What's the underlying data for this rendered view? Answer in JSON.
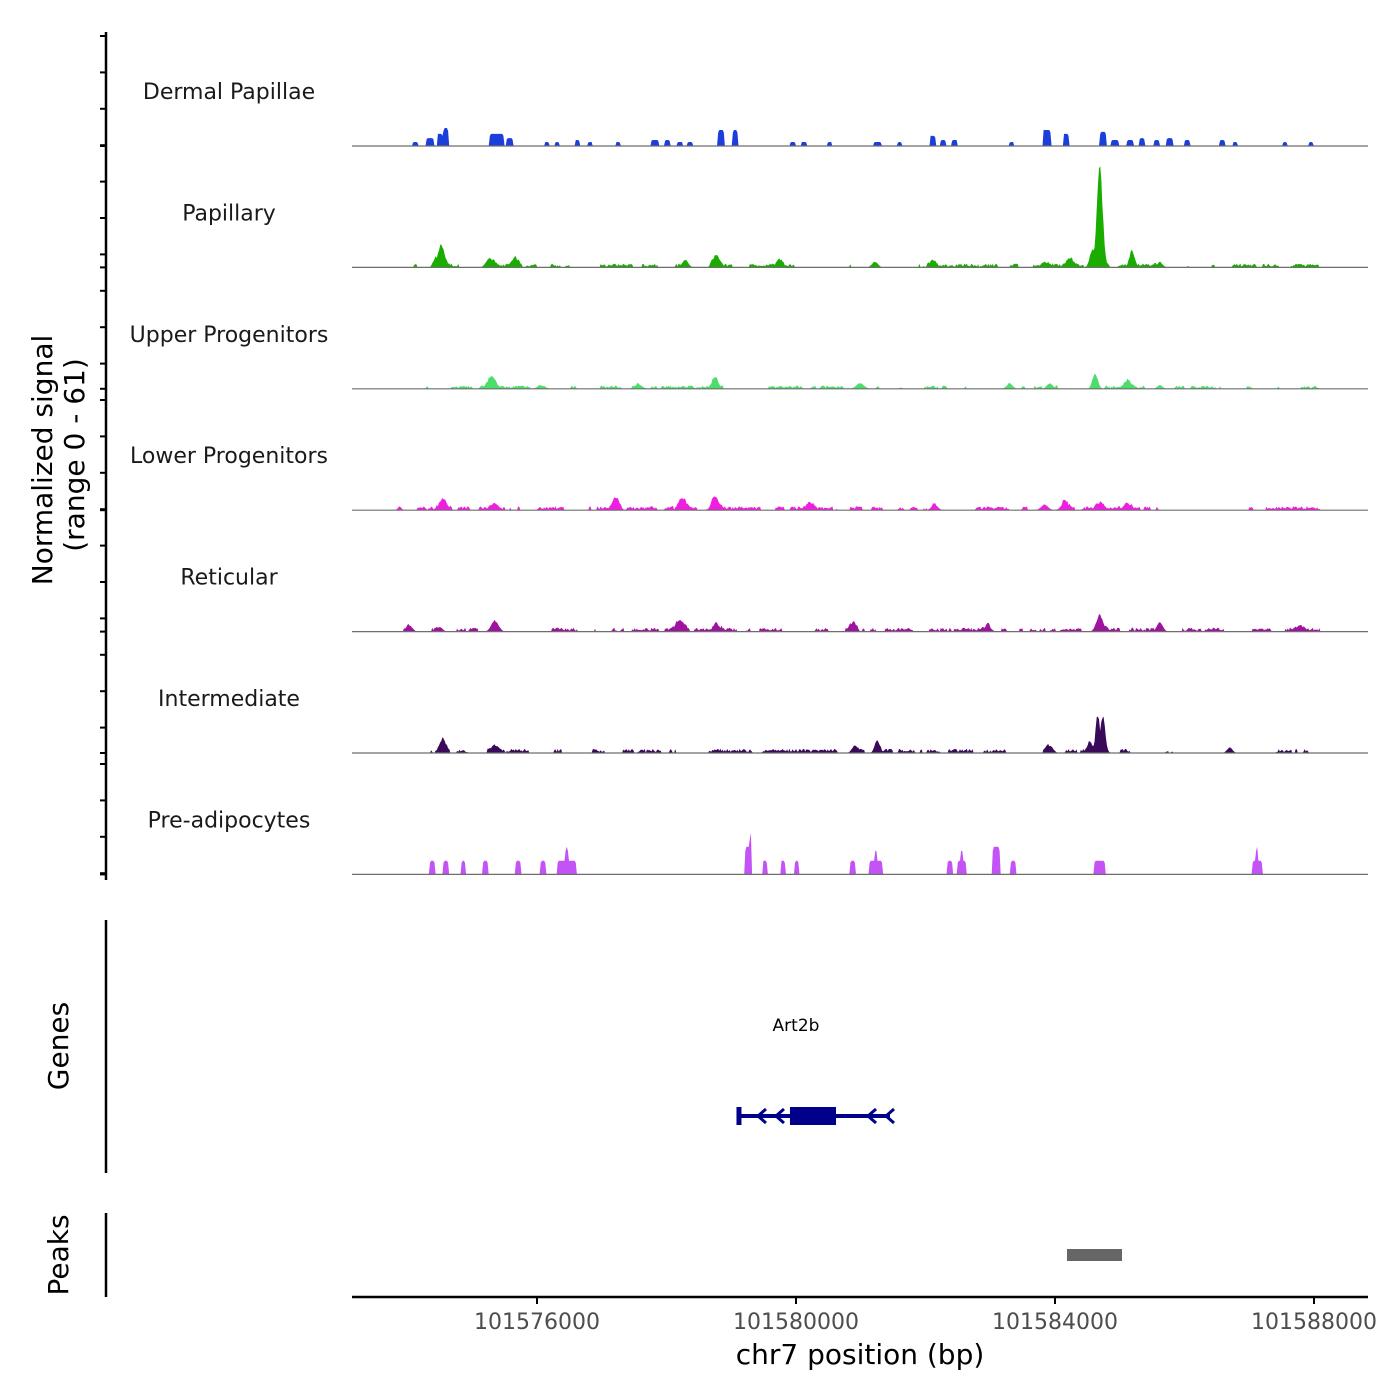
{
  "chart_data": {
    "type": "area",
    "title": "",
    "xlabel": "chr7 position (bp)",
    "ylabel": "Normalized signal",
    "ylabel_sub": "(range 0 - 61)",
    "ylim": [
      0,
      61
    ],
    "xlim": [
      101573143,
      101588834
    ],
    "xticks": [
      101576000,
      101580000,
      101584000,
      101588000
    ],
    "xtick_labels": [
      "101576000",
      "101580000",
      "101584000",
      "101588000"
    ],
    "grid": false,
    "tracks": [
      {
        "name": "Dermal Papillae",
        "color": "#1c3fdb",
        "shape": "block",
        "noise": 0,
        "bumps": [
          [
            101574120,
            93,
            2.2
          ],
          [
            101574350,
            124,
            4.4
          ],
          [
            101574500,
            93,
            6.7
          ],
          [
            101574590,
            93,
            10
          ],
          [
            101575380,
            216,
            6.7
          ],
          [
            101575580,
            93,
            4.4
          ],
          [
            101576150,
            77,
            2.2
          ],
          [
            101576310,
            77,
            2.2
          ],
          [
            101576620,
            77,
            3.3
          ],
          [
            101576820,
            77,
            2.2
          ],
          [
            101577250,
            77,
            2.2
          ],
          [
            101577820,
            108,
            3.3
          ],
          [
            101578010,
            93,
            3.3
          ],
          [
            101578210,
            93,
            2.2
          ],
          [
            101578360,
            93,
            2.2
          ],
          [
            101578840,
            93,
            8.9
          ],
          [
            101579060,
            93,
            8.9
          ],
          [
            101579950,
            93,
            2.2
          ],
          [
            101580120,
            93,
            2.2
          ],
          [
            101580520,
            77,
            2.2
          ],
          [
            101581260,
            124,
            2.2
          ],
          [
            101581600,
            77,
            2.2
          ],
          [
            101582110,
            93,
            5.6
          ],
          [
            101582270,
            93,
            3.3
          ],
          [
            101582450,
            93,
            3.3
          ],
          [
            101583330,
            77,
            2.2
          ],
          [
            101583870,
            124,
            8.9
          ],
          [
            101584170,
            93,
            6.7
          ],
          [
            101584740,
            93,
            7.8
          ],
          [
            101584920,
            124,
            3.3
          ],
          [
            101585160,
            93,
            3.3
          ],
          [
            101585340,
            93,
            4.4
          ],
          [
            101585570,
            93,
            3.3
          ],
          [
            101585770,
            93,
            4.4
          ],
          [
            101586040,
            93,
            3.3
          ],
          [
            101586580,
            93,
            3.3
          ],
          [
            101586780,
            77,
            2.2
          ],
          [
            101587550,
            77,
            2.2
          ],
          [
            101587950,
            77,
            2.2
          ]
        ]
      },
      {
        "name": "Papillary",
        "color": "#1aad00",
        "shape": "peak",
        "noise": 1.6,
        "bumps": [
          [
            101584690,
            95,
            61
          ],
          [
            101584580,
            90,
            11
          ],
          [
            101585190,
            80,
            9
          ],
          [
            101574520,
            110,
            12
          ],
          [
            101574430,
            80,
            5.5
          ],
          [
            101575270,
            120,
            5.6
          ],
          [
            101575660,
            120,
            4.4
          ],
          [
            101578290,
            100,
            4.4
          ],
          [
            101578760,
            110,
            5.6
          ],
          [
            101579750,
            90,
            3.3
          ],
          [
            101581220,
            100,
            3.3
          ],
          [
            101582110,
            100,
            3.3
          ],
          [
            101583840,
            120,
            3.3
          ],
          [
            101584230,
            110,
            4.4
          ],
          [
            101585620,
            90,
            3.3
          ]
        ]
      },
      {
        "name": "Upper Progenitors",
        "color": "#4ddd6a",
        "shape": "peak",
        "noise": 1.4,
        "bumps": [
          [
            101575300,
            120,
            6.7
          ],
          [
            101578750,
            100,
            5.6
          ],
          [
            101584620,
            90,
            8.9
          ],
          [
            101585120,
            100,
            4.4
          ],
          [
            101580990,
            130,
            3.3
          ],
          [
            101583300,
            100,
            3.3
          ],
          [
            101583920,
            100,
            3.3
          ],
          [
            101577590,
            100,
            2.2
          ],
          [
            101576050,
            100,
            2.2
          ],
          [
            101585620,
            90,
            2.2
          ]
        ]
      },
      {
        "name": "Lower Progenitors",
        "color": "#f01ee0",
        "shape": "peak",
        "noise": 1.7,
        "bumps": [
          [
            101577220,
            110,
            7.8
          ],
          [
            101578750,
            120,
            6.7
          ],
          [
            101578250,
            120,
            5.6
          ],
          [
            101574550,
            110,
            5.6
          ],
          [
            101584150,
            120,
            4.4
          ],
          [
            101585110,
            110,
            4.4
          ],
          [
            101583840,
            120,
            3.3
          ],
          [
            101584690,
            120,
            3.3
          ],
          [
            101582140,
            110,
            3.3
          ],
          [
            101580220,
            110,
            3.3
          ],
          [
            101575350,
            100,
            3.3
          ],
          [
            101573880,
            60,
            2.2
          ]
        ]
      },
      {
        "name": "Reticular",
        "color": "#a0139f",
        "shape": "peak",
        "noise": 1.7,
        "bumps": [
          [
            101584690,
            110,
            10
          ],
          [
            101578210,
            150,
            5.6
          ],
          [
            101575350,
            120,
            6.7
          ],
          [
            101578780,
            100,
            4.4
          ],
          [
            101580880,
            110,
            4.4
          ],
          [
            101585620,
            100,
            5.6
          ],
          [
            101582960,
            110,
            3.3
          ],
          [
            101574040,
            90,
            3.3
          ],
          [
            101574500,
            90,
            2.8
          ],
          [
            101587780,
            90,
            2.2
          ]
        ]
      },
      {
        "name": "Intermediate",
        "color": "#3a0a5a",
        "shape": "peak",
        "noise": 1.8,
        "bumps": [
          [
            101584660,
            70,
            23
          ],
          [
            101584740,
            80,
            21
          ],
          [
            101574550,
            90,
            7.8
          ],
          [
            101581250,
            80,
            7.8
          ],
          [
            101584540,
            80,
            5.6
          ],
          [
            101583920,
            110,
            4.4
          ],
          [
            101580910,
            100,
            4.4
          ],
          [
            101575350,
            110,
            3.3
          ],
          [
            101586700,
            90,
            3.3
          ]
        ]
      },
      {
        "name": "Pre-adipocytes",
        "color": "#c453f5",
        "shape": "block",
        "noise": 0,
        "bumps": [
          [
            101574380,
            80,
            7.6
          ],
          [
            101574590,
            80,
            7.6
          ],
          [
            101574860,
            70,
            7.6
          ],
          [
            101575200,
            80,
            7.6
          ],
          [
            101575710,
            90,
            7.6
          ],
          [
            101576090,
            90,
            7.6
          ],
          [
            101576460,
            300,
            7.6
          ],
          [
            101576460,
            40,
            15.3
          ],
          [
            101579260,
            90,
            15.3
          ],
          [
            101579300,
            40,
            23
          ],
          [
            101579520,
            80,
            7.6
          ],
          [
            101579800,
            80,
            7.6
          ],
          [
            101580010,
            80,
            7.6
          ],
          [
            101580880,
            80,
            7.6
          ],
          [
            101581230,
            200,
            7.6
          ],
          [
            101581230,
            40,
            15.3
          ],
          [
            101582380,
            80,
            7.6
          ],
          [
            101582560,
            150,
            7.6
          ],
          [
            101582560,
            40,
            15.3
          ],
          [
            101583090,
            120,
            15.3
          ],
          [
            101583350,
            80,
            7.6
          ],
          [
            101584690,
            180,
            7.6
          ],
          [
            101587120,
            160,
            7.6
          ],
          [
            101587120,
            40,
            15.3
          ]
        ]
      }
    ],
    "genes_panel": {
      "title": "Genes",
      "genes": [
        {
          "name": "Art2b",
          "start": 101579104,
          "end": 101581452,
          "thick_start": 101579907,
          "thick_end": 101580618,
          "strand": "-",
          "color": "#00008b"
        }
      ]
    },
    "peaks_panel": {
      "title": "Peaks",
      "peaks": [
        {
          "start": 101584185,
          "end": 101585035,
          "color": "#666666"
        }
      ]
    }
  }
}
